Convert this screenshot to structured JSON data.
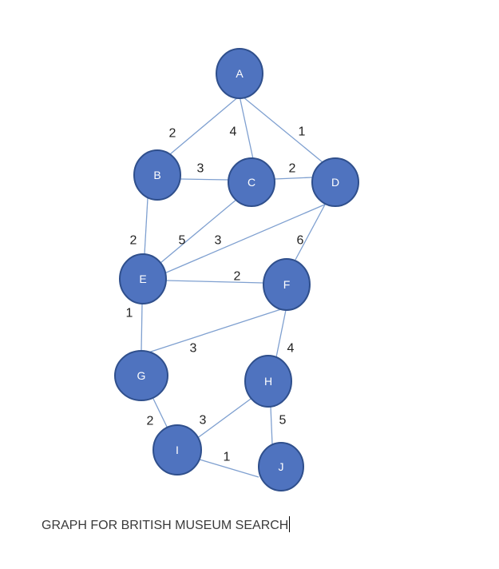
{
  "graph": {
    "nodes": [
      {
        "id": "A",
        "label": "A"
      },
      {
        "id": "B",
        "label": "B"
      },
      {
        "id": "C",
        "label": "C"
      },
      {
        "id": "D",
        "label": "D"
      },
      {
        "id": "E",
        "label": "E"
      },
      {
        "id": "F",
        "label": "F"
      },
      {
        "id": "G",
        "label": "G"
      },
      {
        "id": "H",
        "label": "H"
      },
      {
        "id": "I",
        "label": "I"
      },
      {
        "id": "J",
        "label": "J"
      }
    ],
    "edges": [
      {
        "from": "A",
        "to": "B",
        "weight": "2"
      },
      {
        "from": "A",
        "to": "C",
        "weight": "4"
      },
      {
        "from": "A",
        "to": "D",
        "weight": "1"
      },
      {
        "from": "B",
        "to": "C",
        "weight": "3"
      },
      {
        "from": "C",
        "to": "D",
        "weight": "2"
      },
      {
        "from": "B",
        "to": "E",
        "weight": "2"
      },
      {
        "from": "C",
        "to": "E",
        "weight": "5"
      },
      {
        "from": "D",
        "to": "E",
        "weight": "3"
      },
      {
        "from": "D",
        "to": "F",
        "weight": "6"
      },
      {
        "from": "E",
        "to": "F",
        "weight": "2"
      },
      {
        "from": "E",
        "to": "G",
        "weight": "1"
      },
      {
        "from": "F",
        "to": "G",
        "weight": "3"
      },
      {
        "from": "F",
        "to": "H",
        "weight": "4"
      },
      {
        "from": "G",
        "to": "I",
        "weight": "2"
      },
      {
        "from": "H",
        "to": "I",
        "weight": "3"
      },
      {
        "from": "H",
        "to": "J",
        "weight": "5"
      },
      {
        "from": "I",
        "to": "J",
        "weight": "1"
      }
    ]
  },
  "caption": "GRAPH FOR BRITISH MUSEUM SEARCH"
}
